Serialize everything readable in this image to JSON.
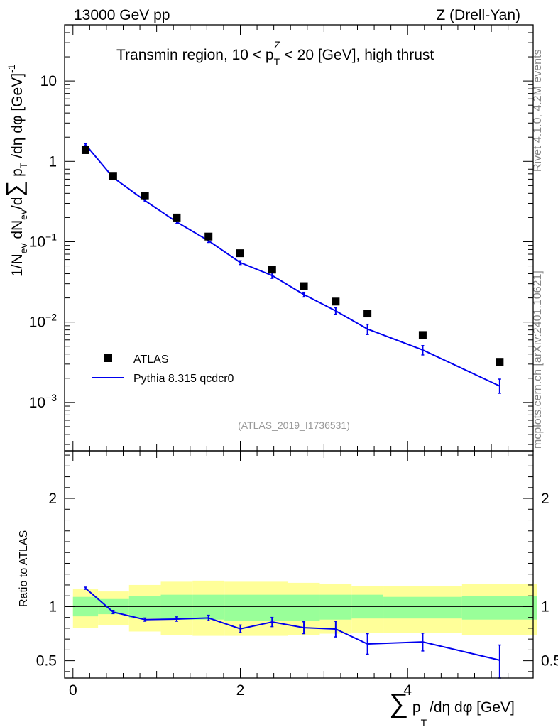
{
  "header": {
    "energy_label": "13000 GeV pp",
    "process_label": "Z (Drell-Yan)"
  },
  "side_labels": {
    "rivet": "Rivet 4.1.0,  4.2M events",
    "source": "mcplots.cern.ch [arXiv:2401.10621]"
  },
  "chart_data": [
    {
      "type": "scatter",
      "panel": "main",
      "title": "Transmin region, 10 < p_T^Z < 20 [GeV], high thrust",
      "title_parts": {
        "prefix": "Transmin region, 10 < p",
        "sub": "T",
        "sup": "Z",
        "suffix": " < 20 [GeV], high thrust"
      },
      "ylabel": "1/N_ev dN_ev/d∑ p_T /dη dφ [GeV]^-1",
      "ylabel_parts": {
        "a": "1/N",
        "a_sub": "ev",
        "b": " dN",
        "b_sub": "ev",
        "c": "/d",
        "sum": "∑",
        "d": " p",
        "d_sub": "T",
        "e": " /dη dφ  [GeV]",
        "e_sup": "-1"
      },
      "yscale": "log",
      "ylim": [
        0.00025,
        50
      ],
      "xlim": [
        -0.1,
        5.5
      ],
      "yticks": [
        {
          "v": 0.001,
          "base": "10",
          "exp": "−3"
        },
        {
          "v": 0.01,
          "base": "10",
          "exp": "−2"
        },
        {
          "v": 0.1,
          "base": "10",
          "exp": "−1"
        },
        {
          "v": 1,
          "base": "1",
          "exp": ""
        },
        {
          "v": 10,
          "base": "10",
          "exp": ""
        }
      ],
      "watermark": "(ATLAS_2019_I1736531)",
      "legend": {
        "position": "bottom-left",
        "data_label": "ATLAS",
        "mc_label": "Pythia 8.315 qcdcr0"
      },
      "series": [
        {
          "name": "ATLAS",
          "marker": "square",
          "color": "#000000",
          "x": [
            0.15,
            0.48,
            0.86,
            1.24,
            1.62,
            2.0,
            2.38,
            2.76,
            3.14,
            3.52,
            4.18,
            5.1
          ],
          "values": [
            1.38,
            0.66,
            0.37,
            0.2,
            0.116,
            0.072,
            0.045,
            0.028,
            0.018,
            0.0128,
            0.0069,
            0.0032
          ]
        },
        {
          "name": "Pythia 8.315 qcdcr0",
          "marker": "line",
          "color": "#0000ee",
          "x": [
            0.15,
            0.48,
            0.86,
            1.24,
            1.62,
            2.0,
            2.38,
            2.76,
            3.14,
            3.52,
            4.18,
            5.1
          ],
          "values": [
            1.62,
            0.63,
            0.325,
            0.176,
            0.103,
            0.055,
            0.038,
            0.022,
            0.0138,
            0.0082,
            0.0045,
            0.0016
          ],
          "err_lo": [
            1.58,
            0.61,
            0.315,
            0.168,
            0.098,
            0.052,
            0.035,
            0.0205,
            0.0125,
            0.007,
            0.0039,
            0.0013
          ],
          "err_hi": [
            1.66,
            0.65,
            0.335,
            0.184,
            0.108,
            0.058,
            0.041,
            0.0235,
            0.0151,
            0.0094,
            0.0051,
            0.00195
          ]
        }
      ]
    },
    {
      "type": "line",
      "panel": "ratio",
      "ylabel": "Ratio to ATLAS",
      "xlabel": "∑ p_T /dη dφ [GeV]",
      "xlabel_parts": {
        "sum": "∑",
        "p": " p",
        "p_sub": "T",
        "rest": " /dη dφ [GeV]"
      },
      "ylim": [
        0.34,
        2.44
      ],
      "xlim": [
        -0.1,
        5.5
      ],
      "yticks": [
        0.5,
        1,
        2
      ],
      "ytick_labels": [
        "0.5",
        "1",
        "2"
      ],
      "xticks": [
        0,
        2,
        4
      ],
      "xtick_labels": [
        "0",
        "2",
        "4"
      ],
      "reference_line": 1.0,
      "bands": {
        "bins": [
          [
            0.0,
            0.3
          ],
          [
            0.3,
            0.67
          ],
          [
            0.67,
            1.05
          ],
          [
            1.05,
            1.43
          ],
          [
            1.43,
            1.81
          ],
          [
            1.81,
            2.19
          ],
          [
            2.19,
            2.57
          ],
          [
            2.57,
            2.95
          ],
          [
            2.95,
            3.33
          ],
          [
            3.33,
            3.71
          ],
          [
            3.71,
            4.65
          ],
          [
            4.65,
            5.55
          ]
        ],
        "stat_lo": [
          0.91,
          0.93,
          0.89,
          0.88,
          0.88,
          0.87,
          0.87,
          0.87,
          0.88,
          0.89,
          0.89,
          0.88
        ],
        "stat_hi": [
          1.09,
          1.07,
          1.1,
          1.11,
          1.11,
          1.11,
          1.11,
          1.11,
          1.11,
          1.11,
          1.09,
          1.1
        ],
        "total_lo": [
          0.8,
          0.83,
          0.77,
          0.74,
          0.73,
          0.73,
          0.73,
          0.74,
          0.75,
          0.76,
          0.76,
          0.74
        ],
        "total_hi": [
          1.16,
          1.14,
          1.2,
          1.23,
          1.24,
          1.23,
          1.23,
          1.22,
          1.21,
          1.19,
          1.19,
          1.21
        ],
        "stat_color": "#99ff99",
        "total_color": "#ffff99"
      },
      "series": [
        {
          "name": "Pythia 8.315 qcdcr0 / ATLAS",
          "color": "#0000ee",
          "x": [
            0.15,
            0.48,
            0.86,
            1.24,
            1.62,
            2.0,
            2.38,
            2.76,
            3.14,
            3.52,
            4.18,
            5.1
          ],
          "values": [
            1.17,
            0.95,
            0.88,
            0.885,
            0.895,
            0.795,
            0.858,
            0.805,
            0.793,
            0.655,
            0.674,
            0.505
          ],
          "err_lo": [
            1.16,
            0.935,
            0.865,
            0.865,
            0.87,
            0.76,
            0.815,
            0.75,
            0.72,
            0.56,
            0.59,
            0.34
          ],
          "err_hi": [
            1.18,
            0.965,
            0.895,
            0.905,
            0.92,
            0.83,
            0.9,
            0.86,
            0.865,
            0.75,
            0.755,
            0.645
          ]
        }
      ]
    }
  ]
}
